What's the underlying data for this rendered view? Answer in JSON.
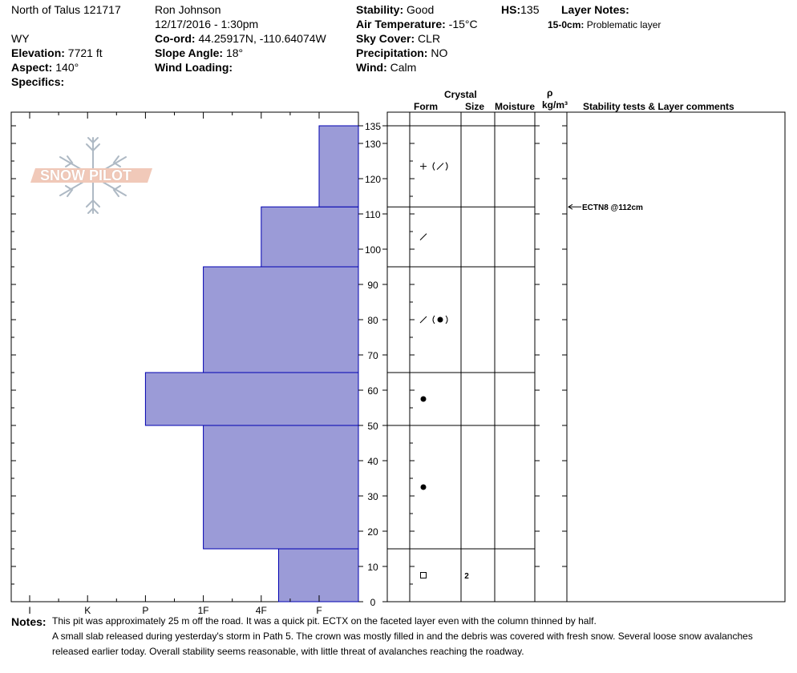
{
  "header": {
    "location": "North of Talus 121717",
    "observer": "Ron  Johnson",
    "datetime": "12/17/2016 - 1:30pm",
    "state": "WY",
    "elevation": {
      "label": "Elevation:",
      "value": "7721 ft"
    },
    "aspect": {
      "label": "Aspect:",
      "value": "140°"
    },
    "specifics": {
      "label": "Specifics:",
      "value": ""
    },
    "coord": {
      "label": "Co-ord:",
      "value": "44.25917N, -110.64074W"
    },
    "slope_angle": {
      "label": "Slope Angle:",
      "value": "18°"
    },
    "wind_loading": {
      "label": "Wind Loading:",
      "value": ""
    },
    "stability": {
      "label": "Stability:",
      "value": "Good"
    },
    "air_temperature": {
      "label": "Air Temperature:",
      "value": "-15°C"
    },
    "sky_cover": {
      "label": "Sky Cover:",
      "value": "CLR"
    },
    "precipitation": {
      "label": "Precipitation:",
      "value": "NO"
    },
    "wind": {
      "label": "Wind:",
      "value": "Calm"
    },
    "hs": {
      "label": "HS:",
      "value": "135"
    },
    "layer_notes": {
      "label": "Layer Notes:",
      "depth": "15-0cm:",
      "text": "Problematic layer"
    }
  },
  "logo": {
    "text": "SNOW PILOT"
  },
  "columns": {
    "crystal": "Crystal",
    "form": "Form",
    "size": "Size",
    "moisture": "Moisture",
    "rho": "ρ",
    "density_unit": "kg/m³",
    "stability_tests": "Stability tests & Layer comments"
  },
  "colors": {
    "hardness_fill": "#9b9bd7",
    "hardness_stroke": "#0000b0"
  },
  "chart_data": {
    "type": "bar",
    "title": "",
    "hardness_scale": [
      "I",
      "K",
      "P",
      "1F",
      "4F",
      "F"
    ],
    "ylim": [
      0,
      135
    ],
    "yticks": [
      0,
      10,
      20,
      30,
      40,
      50,
      60,
      70,
      80,
      90,
      100,
      110,
      120,
      130,
      135
    ],
    "layers": [
      {
        "bottom": 0,
        "top": 15,
        "hardness": "4F-",
        "hardness_index": 4.3,
        "form": "square",
        "size": "2"
      },
      {
        "bottom": 15,
        "top": 50,
        "hardness": "1F",
        "hardness_index": 3.0,
        "form": "dot",
        "size": ""
      },
      {
        "bottom": 50,
        "top": 65,
        "hardness": "P",
        "hardness_index": 2.0,
        "form": "dot",
        "size": ""
      },
      {
        "bottom": 65,
        "top": 95,
        "hardness": "1F",
        "hardness_index": 3.0,
        "form": "slash-paren-dot",
        "size": ""
      },
      {
        "bottom": 95,
        "top": 112,
        "hardness": "4F",
        "hardness_index": 4.0,
        "form": "slash",
        "size": ""
      },
      {
        "bottom": 112,
        "top": 135,
        "hardness": "F+",
        "hardness_index": 5.0,
        "form": "plus-paren-slash",
        "size": ""
      }
    ],
    "stability_tests": [
      {
        "depth": 112,
        "label": "ECTN8 @112cm"
      }
    ]
  },
  "notes": {
    "label": "Notes:",
    "lines": [
      "This pit was approximately 25 m off the road.  It was a quick pit.  ECTX on the faceted layer even with the column thinned by half.",
      "A small slab released during yesterday's storm in Path 5.  The crown was mostly filled in and the debris was covered with fresh snow.  Several loose snow avalanches",
      "released earlier today.  Overall stability seems reasonable, with little threat of avalanches reaching the roadway."
    ]
  }
}
